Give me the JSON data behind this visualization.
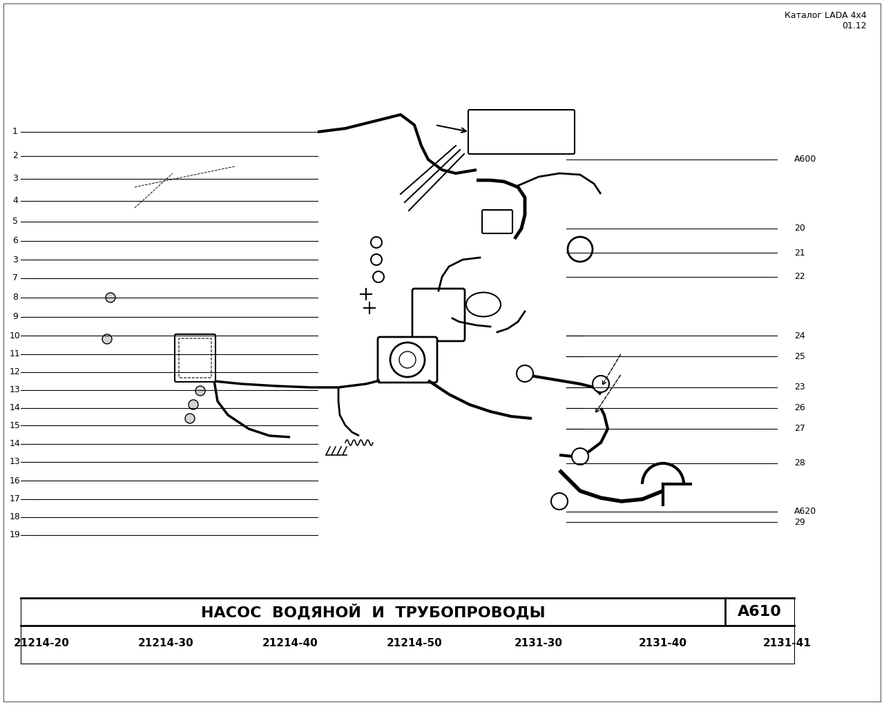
{
  "title_catalog": "Каталог LADA 4x4",
  "title_date": "01.12",
  "page_code": "А610",
  "section_title": "НАСОС  ВОДЯНОЙ  И  ТРУБОПРОВОДЫ",
  "left_labels": [
    1,
    2,
    3,
    4,
    5,
    6,
    3,
    7,
    8,
    9,
    10,
    11,
    12,
    13,
    14,
    15,
    14,
    13,
    16,
    17,
    18,
    19
  ],
  "right_labels_top": [
    "А600",
    20,
    21,
    22,
    24,
    25,
    23,
    26,
    27,
    28,
    "А620",
    29
  ],
  "bottom_codes": [
    "21214-20",
    "21214-30",
    "21214-40",
    "21214-50",
    "2131-30",
    "2131-40",
    "2131-41"
  ],
  "bg_color": "#ffffff",
  "line_color": "#000000",
  "text_color": "#000000"
}
